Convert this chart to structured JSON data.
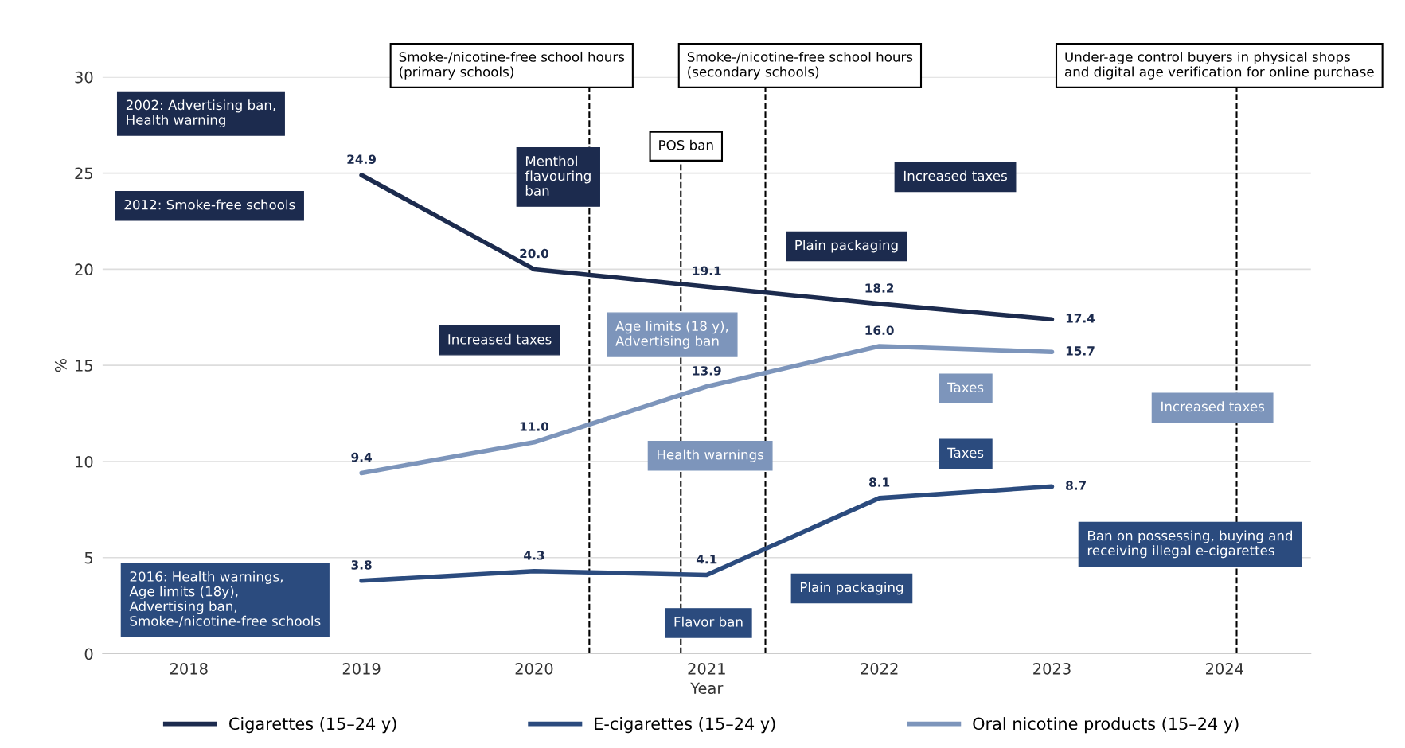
{
  "chart_data": {
    "type": "line",
    "xlabel": "Year",
    "ylabel": "%",
    "x": [
      2019,
      2020,
      2021,
      2022,
      2023
    ],
    "series": [
      {
        "name": "Cigarettes (15–24 y)",
        "color": "#1c2b4e",
        "values": [
          24.9,
          20.0,
          19.1,
          18.2,
          17.4
        ],
        "value_labels": [
          "24.9",
          "20.0",
          "19.1",
          "18.2",
          "17.4"
        ]
      },
      {
        "name": "E-cigarettes (15–24 y)",
        "color": "#2b4b7e",
        "values": [
          3.8,
          4.3,
          4.1,
          8.1,
          8.7
        ],
        "value_labels": [
          "3.8",
          "4.3",
          "4.1",
          "8.1",
          "8.7"
        ]
      },
      {
        "name": "Oral nicotine products (15–24 y)",
        "color": "#7d95bb",
        "values": [
          9.4,
          11.0,
          13.9,
          16.0,
          15.7
        ],
        "value_labels": [
          "9.4",
          "11.0",
          "13.9",
          "16.0",
          "15.7"
        ]
      }
    ],
    "xlim": [
      2017.5,
      2024.5
    ],
    "xticks": [
      2018,
      2019,
      2020,
      2021,
      2022,
      2023,
      2024
    ],
    "ylim": [
      0,
      30
    ],
    "yticks": [
      0,
      5,
      10,
      15,
      20,
      25,
      30
    ],
    "grid": "y",
    "legend": "bottom",
    "marker": "none",
    "line_style": "solid",
    "ref_lines": [
      {
        "axis": "x",
        "value": 2020.32,
        "color": "#000000",
        "line_style": "dashed",
        "label": "Smoke-/nicotine-free school hours\n(primary schools)"
      },
      {
        "axis": "x",
        "value": 2020.85,
        "color": "#000000",
        "line_style": "dashed",
        "label": "POS ban"
      },
      {
        "axis": "x",
        "value": 2021.34,
        "color": "#000000",
        "line_style": "dashed",
        "label": "Smoke-/nicotine-free school hours\n(secondary schools)"
      },
      {
        "axis": "x",
        "value": 2024.07,
        "color": "#000000",
        "line_style": "dashed",
        "label": "Under-age control buyers in physical shops\nand digital age verification for online purchase"
      }
    ],
    "annotations": [
      "2002: Advertising ban,\nHealth warning",
      "2012: Smoke-free schools",
      "2016: Health warnings,\nAge limits (18y),\nAdvertising ban,\nSmoke-/nicotine-free schools",
      "Menthol\nflavouring\nban",
      "Increased taxes",
      "Plain packaging",
      "Increased taxes",
      "Age limits (18 y),\nAdvertising ban",
      "Taxes",
      "Increased taxes",
      "Health warnings",
      "Taxes",
      "Ban on possessing, buying and\nreceiving illegal e-cigarettes",
      "Plain packaging",
      "Flavor ban"
    ]
  }
}
